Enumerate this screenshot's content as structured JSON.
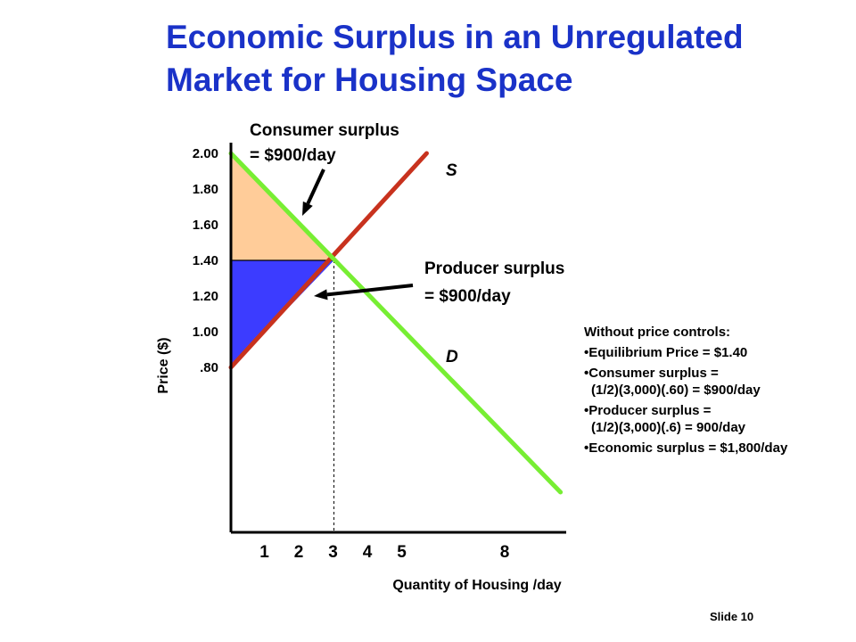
{
  "slide": {
    "title_line1": "Economic Surplus in an Unregulated",
    "title_line2": "Market for Housing Space",
    "slide_number": "Slide 10"
  },
  "chart_data": {
    "type": "line",
    "title": "Economic Surplus in an Unregulated Market for Housing Space",
    "xlabel": "Quantity of Housing /day",
    "ylabel": "Price ($)",
    "x_ticks": [
      {
        "value": 1,
        "label": "1"
      },
      {
        "value": 2,
        "label": "2"
      },
      {
        "value": 3,
        "label": "3"
      },
      {
        "value": 4,
        "label": "4"
      },
      {
        "value": 5,
        "label": "5"
      },
      {
        "value": 8,
        "label": "8"
      }
    ],
    "y_ticks": [
      {
        "value": 2.0,
        "label": "2.00"
      },
      {
        "value": 1.8,
        "label": "1.80"
      },
      {
        "value": 1.6,
        "label": "1.60"
      },
      {
        "value": 1.4,
        "label": "1.40"
      },
      {
        "value": 1.2,
        "label": "1.20"
      },
      {
        "value": 1.0,
        "label": "1.00"
      },
      {
        "value": 0.8,
        "label": ".80"
      }
    ],
    "series": [
      {
        "name": "S",
        "color": "#c8321e",
        "points": [
          [
            0,
            0.8
          ],
          [
            5.7,
            2.0
          ]
        ]
      },
      {
        "name": "D",
        "color": "#77ee33",
        "points": [
          [
            0,
            2.0
          ],
          [
            9.6,
            0.1
          ]
        ]
      }
    ],
    "equilibrium": {
      "x": 3,
      "y": 1.4
    },
    "consumer_surplus_area": {
      "color": "#ffcc99",
      "points": [
        [
          0,
          2.0
        ],
        [
          3,
          1.4
        ],
        [
          0,
          1.4
        ]
      ]
    },
    "producer_surplus_area": {
      "color": "#3c3cff",
      "points": [
        [
          0,
          1.4
        ],
        [
          3,
          1.4
        ],
        [
          0,
          0.8
        ]
      ]
    },
    "annotations": {
      "consumer_surplus": [
        "Consumer surplus",
        "= $900/day"
      ],
      "producer_surplus": [
        "Producer surplus",
        "= $900/day"
      ]
    },
    "grid": false
  },
  "notes": {
    "heading": "Without price controls:",
    "items": [
      {
        "line1": "Equilibrium Price = $1.40",
        "line2": ""
      },
      {
        "line1": "Consumer surplus =",
        "line2": "(1/2)(3,000)(.60) = $900/day"
      },
      {
        "line1": "Producer surplus =",
        "line2": "(1/2)(3,000)(.6) = 900/day"
      },
      {
        "line1": "Economic surplus = $1,800/day",
        "line2": ""
      }
    ]
  }
}
